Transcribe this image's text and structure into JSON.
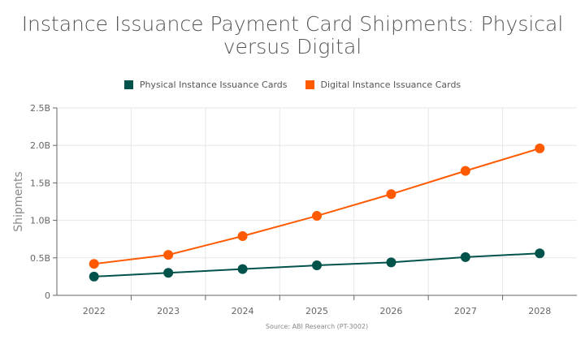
{
  "chart_data": {
    "type": "line",
    "title": "Instance Issuance Payment Card Shipments: Physical versus Digital",
    "ylabel": "Shipments",
    "xlabel": "",
    "categories": [
      "2022",
      "2023",
      "2024",
      "2025",
      "2026",
      "2027",
      "2028"
    ],
    "yticks": [
      "0",
      "0.5B",
      "1.0B",
      "1.5B",
      "2.0B",
      "2.5B"
    ],
    "ylim": [
      0,
      2.5
    ],
    "unit": "billions",
    "grid": true,
    "legend_position": "top",
    "series": [
      {
        "name": "Physical Instance Issuance Cards",
        "color": "#00524a",
        "values": [
          0.25,
          0.3,
          0.35,
          0.4,
          0.44,
          0.51,
          0.56
        ]
      },
      {
        "name": "Digital Instance Issuance Cards",
        "color": "#ff5a00",
        "values": [
          0.42,
          0.54,
          0.79,
          1.06,
          1.35,
          1.66,
          1.96
        ]
      }
    ],
    "source": "Source: ABI Research (PT-3002)"
  }
}
